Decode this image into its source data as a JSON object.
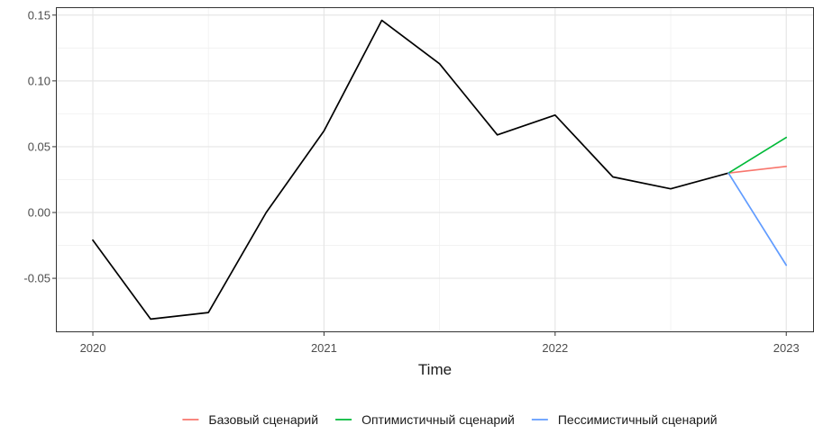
{
  "chart_data": {
    "type": "line",
    "title": "",
    "xlabel": "Time",
    "ylabel": "",
    "xlim": [
      2019.84,
      2023.12
    ],
    "ylim": [
      -0.091,
      0.156
    ],
    "x_ticks": [
      2020,
      2021,
      2022,
      2023
    ],
    "x_tick_labels": [
      "2020",
      "2021",
      "2022",
      "2023"
    ],
    "y_ticks": [
      -0.05,
      0.0,
      0.05,
      0.1,
      0.15
    ],
    "y_tick_labels": [
      "-0.05",
      "0.00",
      "0.05",
      "0.10",
      "0.15"
    ],
    "grid": true,
    "legend_position": "bottom",
    "series": [
      {
        "color": "#000000",
        "x": [
          2020.0,
          2020.25,
          2020.5,
          2020.75,
          2021.0,
          2021.25,
          2021.5,
          2021.75,
          2022.0,
          2022.25,
          2022.5,
          2022.75
        ],
        "values": [
          -0.021,
          -0.081,
          -0.076,
          0.0,
          0.062,
          0.146,
          0.113,
          0.059,
          0.074,
          0.027,
          0.018,
          0.03
        ]
      },
      {
        "name": "Базовый сценарий",
        "color": "#F8766D",
        "x": [
          2022.75,
          2023.0
        ],
        "values": [
          0.03,
          0.035
        ]
      },
      {
        "name": "Оптимистичный сценарий",
        "color": "#00BA38",
        "x": [
          2022.75,
          2023.0
        ],
        "values": [
          0.03,
          0.057
        ]
      },
      {
        "name": "Пессимистичный сценарий",
        "color": "#619CFF",
        "x": [
          2022.75,
          2023.0
        ],
        "values": [
          0.03,
          -0.04
        ]
      }
    ]
  }
}
